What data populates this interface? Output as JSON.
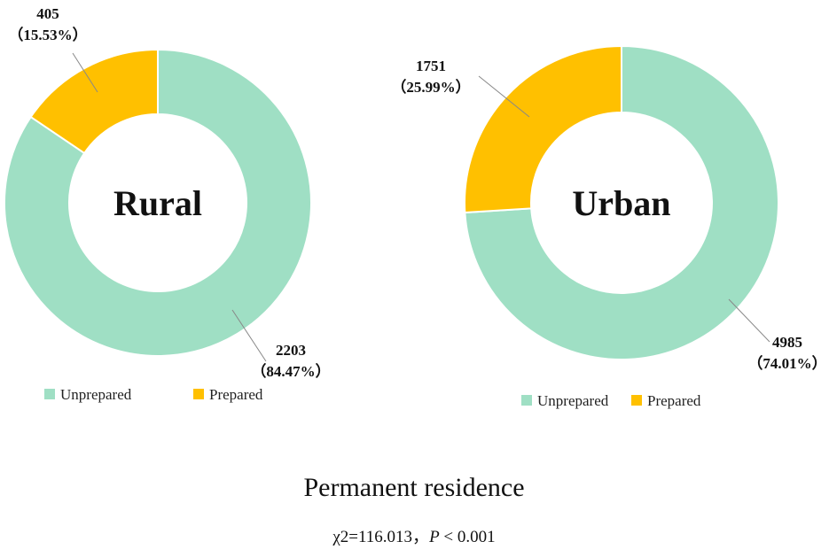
{
  "chart_data": [
    {
      "type": "pie",
      "center_label": "Rural",
      "categories": [
        "Unprepared",
        "Prepared"
      ],
      "values": [
        2203,
        405
      ],
      "percent_labels": [
        "（84.47%）",
        "（15.53%）"
      ],
      "colors": [
        "#9fdfc4",
        "#ffc000"
      ],
      "legend": [
        "Unprepared",
        "Prepared"
      ],
      "legend_position": "bottom"
    },
    {
      "type": "pie",
      "center_label": "Urban",
      "categories": [
        "Unprepared",
        "Prepared"
      ],
      "values": [
        4985,
        1751
      ],
      "percent_labels": [
        "（74.01%）",
        "（25.99%）"
      ],
      "colors": [
        "#9fdfc4",
        "#ffc000"
      ],
      "legend": [
        "Unprepared",
        "Prepared"
      ],
      "legend_position": "bottom"
    }
  ],
  "caption": {
    "title": "Permanent residence",
    "stat_prefix": "χ2=116.013，",
    "stat_p": "P",
    "stat_suffix": " < 0.001"
  }
}
